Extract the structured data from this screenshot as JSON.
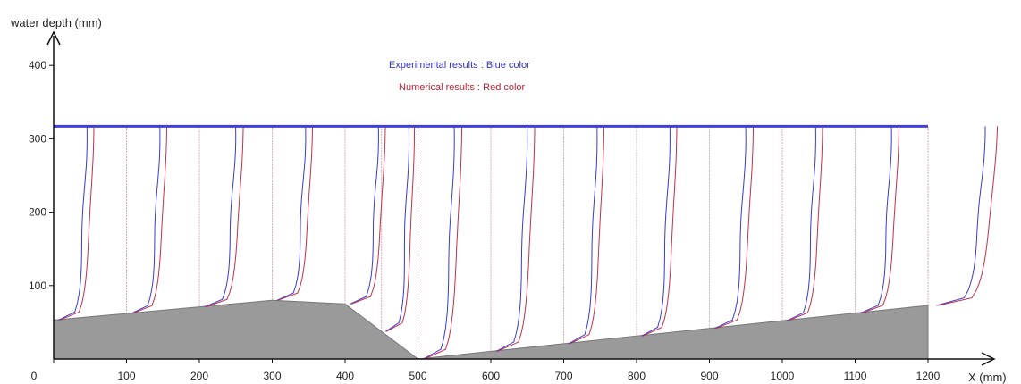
{
  "chart_data": {
    "type": "line",
    "xlabel": "X (mm)",
    "ylabel": "water depth (mm)",
    "xlim": [
      0,
      1290
    ],
    "ylim": [
      0,
      430
    ],
    "x_ticks": [
      0,
      100,
      200,
      300,
      400,
      500,
      600,
      700,
      800,
      900,
      1000,
      1100,
      1200
    ],
    "y_ticks": [
      100,
      200,
      300,
      400
    ],
    "annotations": [
      {
        "text": "Experimental results : Blue color",
        "color": "#3333bb"
      },
      {
        "text": "Numerical results : Red color",
        "color": "#bb2233"
      }
    ],
    "colors": {
      "experimental": "#3a3ad0",
      "numerical": "#c0304a",
      "bed": "#9a9a9a",
      "water_surface": "#4040d8",
      "station_line": "#c89aa0"
    },
    "water_surface": {
      "level": 317,
      "x_range": [
        0,
        1200
      ]
    },
    "bed_profile": {
      "x": [
        0,
        300,
        400,
        500,
        1200
      ],
      "y": [
        53,
        80,
        75,
        0,
        73
      ]
    },
    "stations": [
      0,
      100,
      200,
      300,
      400,
      450,
      500,
      600,
      700,
      800,
      900,
      1000,
      1100,
      1200
    ],
    "velocity_profile_offsets": [
      55,
      55,
      60,
      55,
      55,
      45,
      60,
      60,
      55,
      55,
      60,
      55,
      60,
      95
    ]
  }
}
